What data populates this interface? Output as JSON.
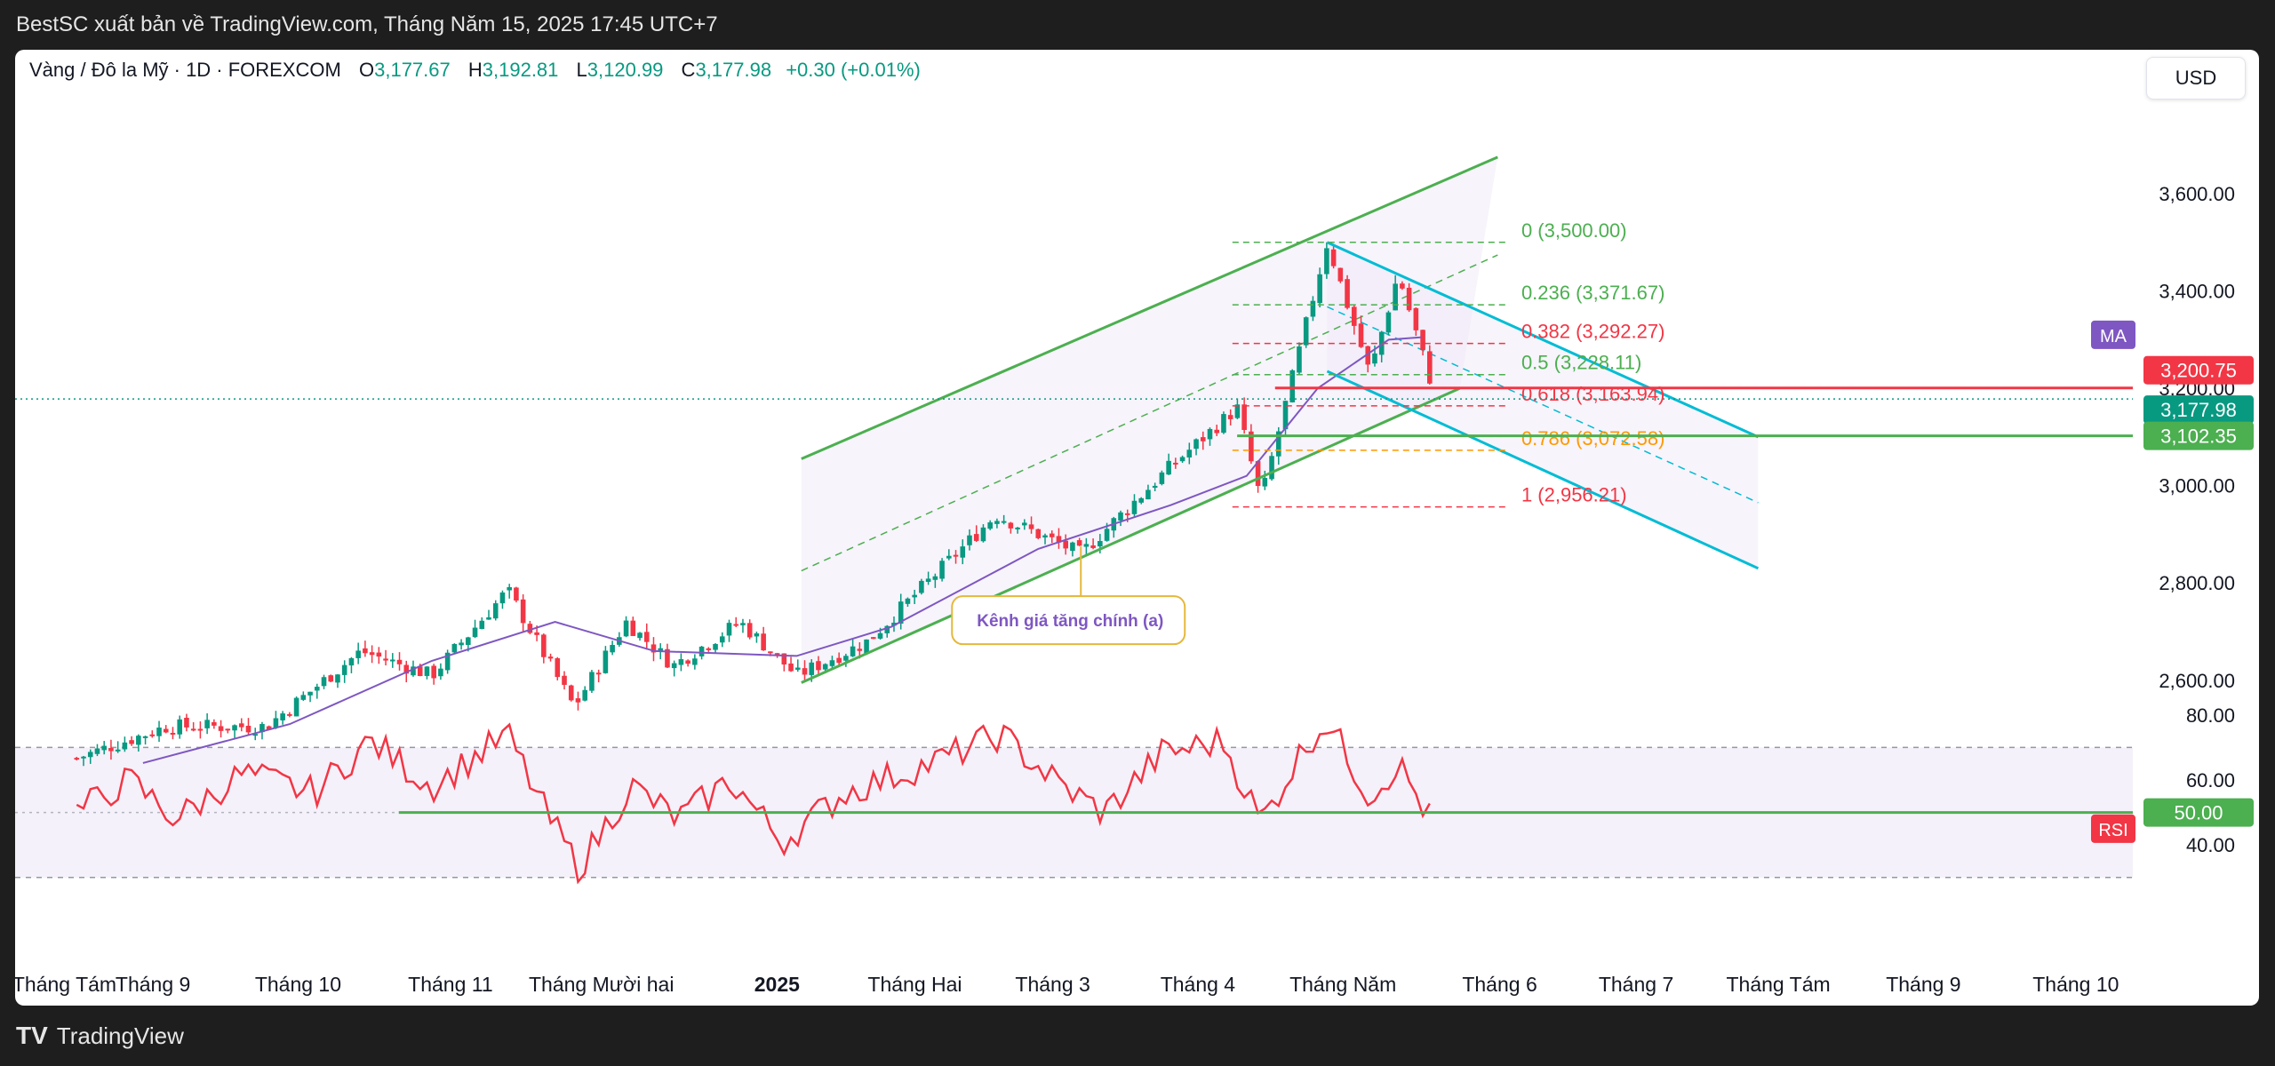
{
  "header": {
    "publisher_text": "BestSC xuất bản về TradingView.com, Tháng Năm 15, 2025 17:45 UTC+7"
  },
  "legend": {
    "symbol": "Vàng / Đô la Mỹ · 1D · FOREXCOM",
    "o_label": "O",
    "o_value": "3,177.67",
    "h_label": "H",
    "h_value": "3,192.81",
    "l_label": "L",
    "l_value": "3,120.99",
    "c_label": "C",
    "c_value": "3,177.98",
    "change": "+0.30 (+0.01%)"
  },
  "currency": "USD",
  "footer": {
    "logo_glyph": "TV",
    "brand": "TradingView"
  },
  "colors": {
    "up": "#089981",
    "down": "#f23645",
    "ma": "#7e57c2",
    "rsi": "#f23645",
    "channel": "#4caf50",
    "descending": "#00bcd4",
    "fib_green": "#4caf50",
    "fib_red": "#f23645",
    "fib_orange": "#ff9800"
  },
  "chart_data": {
    "type": "candlestick",
    "title": "Vàng / Đô la Mỹ · 1D · FOREXCOM",
    "price_axis": {
      "ticks": [
        2600,
        2800,
        3000,
        3200,
        3400,
        3600
      ],
      "tick_labels": [
        "2,600.00",
        "2,800.00",
        "3,000.00",
        "3,200.00",
        "3,400.00",
        "3,600.00"
      ],
      "range": [
        2420,
        3790
      ]
    },
    "x_axis": {
      "labels": [
        "Tháng Tám",
        "Tháng 9",
        "Tháng 10",
        "Tháng 11",
        "Tháng Mười hai",
        "2025",
        "Tháng Hai",
        "Tháng 3",
        "Tháng 4",
        "Tháng Năm",
        "Tháng 6",
        "Tháng 7",
        "Tháng Tám",
        "Tháng 9",
        "Tháng 10"
      ]
    },
    "price_path": [
      {
        "date": "2024-08-01",
        "price": 2440
      },
      {
        "date": "2024-08-20",
        "price": 2505
      },
      {
        "date": "2024-09-10",
        "price": 2505
      },
      {
        "date": "2024-09-30",
        "price": 2660
      },
      {
        "date": "2024-10-15",
        "price": 2610
      },
      {
        "date": "2024-10-31",
        "price": 2785
      },
      {
        "date": "2024-11-14",
        "price": 2545
      },
      {
        "date": "2024-11-25",
        "price": 2720
      },
      {
        "date": "2024-12-05",
        "price": 2630
      },
      {
        "date": "2024-12-19",
        "price": 2720
      },
      {
        "date": "2024-12-31",
        "price": 2610
      },
      {
        "date": "2025-01-15",
        "price": 2680
      },
      {
        "date": "2025-02-11",
        "price": 2940
      },
      {
        "date": "2025-03-01",
        "price": 2860
      },
      {
        "date": "2025-03-20",
        "price": 3040
      },
      {
        "date": "2025-04-03",
        "price": 3160
      },
      {
        "date": "2025-04-08",
        "price": 2970
      },
      {
        "date": "2025-04-22",
        "price": 3500
      },
      {
        "date": "2025-05-01",
        "price": 3230
      },
      {
        "date": "2025-05-07",
        "price": 3435
      },
      {
        "date": "2025-05-15",
        "price": 3178
      }
    ],
    "ma_series": [
      {
        "date": "2024-08-15",
        "price": 2430
      },
      {
        "date": "2024-09-15",
        "price": 2510
      },
      {
        "date": "2024-10-15",
        "price": 2640
      },
      {
        "date": "2024-11-10",
        "price": 2720
      },
      {
        "date": "2024-12-01",
        "price": 2660
      },
      {
        "date": "2024-12-31",
        "price": 2650
      },
      {
        "date": "2025-01-20",
        "price": 2710
      },
      {
        "date": "2025-02-20",
        "price": 2870
      },
      {
        "date": "2025-03-20",
        "price": 2960
      },
      {
        "date": "2025-04-05",
        "price": 3020
      },
      {
        "date": "2025-04-20",
        "price": 3200
      },
      {
        "date": "2025-05-05",
        "price": 3300
      },
      {
        "date": "2025-05-12",
        "price": 3305
      }
    ],
    "ascending_channel": {
      "lower": [
        {
          "date": "2025-01-01",
          "price": 2595
        },
        {
          "date": "2025-05-20",
          "price": 3200
        }
      ],
      "upper": [
        {
          "date": "2025-01-01",
          "price": 3055
        },
        {
          "date": "2025-05-28",
          "price": 3675
        }
      ]
    },
    "descending_channel": {
      "upper": [
        {
          "date": "2025-04-22",
          "price": 3500
        },
        {
          "date": "2025-07-22",
          "price": 3100
        }
      ],
      "lower": [
        {
          "date": "2025-04-22",
          "price": 3235
        },
        {
          "date": "2025-07-22",
          "price": 2830
        }
      ]
    },
    "fibonacci": [
      {
        "ratio": "0",
        "price": 3500.0,
        "label": "0 (3,500.00)"
      },
      {
        "ratio": "0.236",
        "price": 3371.67,
        "label": "0.236 (3,371.67)"
      },
      {
        "ratio": "0.382",
        "price": 3292.27,
        "label": "0.382 (3,292.27)"
      },
      {
        "ratio": "0.5",
        "price": 3228.11,
        "label": "0.5 (3,228.11)"
      },
      {
        "ratio": "0.618",
        "price": 3163.94,
        "label": "0.618 (3,163.94)"
      },
      {
        "ratio": "0.786",
        "price": 3072.58,
        "label": "0.786 (3,072.58)"
      },
      {
        "ratio": "1",
        "price": 2956.21,
        "label": "1 (2,956.21)"
      }
    ],
    "horizontal_levels": [
      {
        "price": 3200.75,
        "label": "3,200.75"
      },
      {
        "price": 3102.35,
        "label": "3,102.35"
      }
    ],
    "last_price": {
      "price": 3177.98,
      "label": "3,177.98"
    },
    "ma_badge": "MA",
    "annotation": {
      "text": "Kênh giá tăng chính (a)",
      "date": "2025-03-01",
      "price": 2875
    },
    "rsi": {
      "axis_ticks": [
        40,
        60,
        80
      ],
      "tick_labels": [
        "40.00",
        "60.00",
        "80.00"
      ],
      "upper_band": 70,
      "lower_band": 30,
      "mid": 50,
      "level_line": {
        "value": 50,
        "label": "50.00"
      },
      "badge": "RSI",
      "path": [
        {
          "date": "2024-08-01",
          "value": 50
        },
        {
          "date": "2024-08-12",
          "value": 60
        },
        {
          "date": "2024-08-22",
          "value": 48
        },
        {
          "date": "2024-09-05",
          "value": 62
        },
        {
          "date": "2024-09-20",
          "value": 56
        },
        {
          "date": "2024-10-02",
          "value": 72
        },
        {
          "date": "2024-10-15",
          "value": 58
        },
        {
          "date": "2024-10-31",
          "value": 74
        },
        {
          "date": "2024-11-08",
          "value": 50
        },
        {
          "date": "2024-11-15",
          "value": 33
        },
        {
          "date": "2024-11-26",
          "value": 58
        },
        {
          "date": "2024-12-06",
          "value": 48
        },
        {
          "date": "2024-12-17",
          "value": 60
        },
        {
          "date": "2024-12-28",
          "value": 41
        },
        {
          "date": "2025-01-10",
          "value": 56
        },
        {
          "date": "2025-01-30",
          "value": 66
        },
        {
          "date": "2025-02-12",
          "value": 74
        },
        {
          "date": "2025-02-25",
          "value": 58
        },
        {
          "date": "2025-03-06",
          "value": 50
        },
        {
          "date": "2025-03-18",
          "value": 68
        },
        {
          "date": "2025-03-31",
          "value": 72
        },
        {
          "date": "2025-04-08",
          "value": 47
        },
        {
          "date": "2025-04-18",
          "value": 72
        },
        {
          "date": "2025-04-22",
          "value": 78
        },
        {
          "date": "2025-05-01",
          "value": 55
        },
        {
          "date": "2025-05-07",
          "value": 65
        },
        {
          "date": "2025-05-15",
          "value": 45
        }
      ]
    }
  }
}
